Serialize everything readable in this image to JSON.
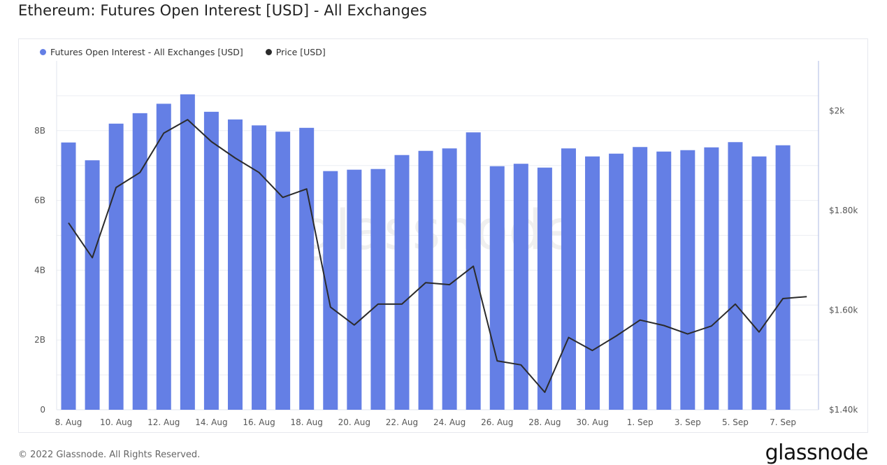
{
  "title": "Ethereum: Futures Open Interest [USD] - All Exchanges",
  "watermark": "glassnode",
  "footer": {
    "copyright": "© 2022 Glassnode. All Rights Reserved.",
    "logo": "glassnode"
  },
  "legend": [
    {
      "label": "Futures Open Interest - All Exchanges [USD]",
      "color": "#647fe5"
    },
    {
      "label": "Price [USD]",
      "color": "#2b2b2b"
    }
  ],
  "chart_data": {
    "type": "bar",
    "title": "Ethereum: Futures Open Interest [USD] - All Exchanges",
    "x_tick_labels": [
      "8. Aug",
      "10. Aug",
      "12. Aug",
      "14. Aug",
      "16. Aug",
      "18. Aug",
      "20. Aug",
      "22. Aug",
      "24. Aug",
      "26. Aug",
      "28. Aug",
      "30. Aug",
      "1. Sep",
      "3. Sep",
      "5. Sep",
      "7. Sep"
    ],
    "y_left_ticks": [
      {
        "value": 0,
        "label": "0"
      },
      {
        "value": 2000000000,
        "label": "2B"
      },
      {
        "value": 4000000000,
        "label": "4B"
      },
      {
        "value": 6000000000,
        "label": "6B"
      },
      {
        "value": 8000000000,
        "label": "8B"
      }
    ],
    "y_right_ticks": [
      {
        "value": 1400,
        "label": "$1.40k"
      },
      {
        "value": 1600,
        "label": "$1.60k"
      },
      {
        "value": 1800,
        "label": "$1.80k"
      },
      {
        "value": 2000,
        "label": "$2k"
      }
    ],
    "ylim_left": [
      0,
      10000000000
    ],
    "ylim_right": [
      1400,
      2100
    ],
    "grid": true,
    "legend_position": "top-left",
    "series": [
      {
        "name": "Futures Open Interest - All Exchanges [USD]",
        "type": "bar",
        "axis": "left",
        "color": "#647fe5",
        "x": [
          "2022-08-08",
          "2022-08-09",
          "2022-08-10",
          "2022-08-11",
          "2022-08-12",
          "2022-08-13",
          "2022-08-14",
          "2022-08-15",
          "2022-08-16",
          "2022-08-17",
          "2022-08-18",
          "2022-08-19",
          "2022-08-20",
          "2022-08-21",
          "2022-08-22",
          "2022-08-23",
          "2022-08-24",
          "2022-08-25",
          "2022-08-26",
          "2022-08-27",
          "2022-08-28",
          "2022-08-29",
          "2022-08-30",
          "2022-08-31",
          "2022-09-01",
          "2022-09-02",
          "2022-09-03",
          "2022-09-04",
          "2022-09-05",
          "2022-09-06",
          "2022-09-07"
        ],
        "values": [
          7660000000.0,
          7150000000.0,
          8200000000.0,
          8500000000.0,
          8770000000.0,
          9040000000.0,
          8540000000.0,
          8320000000.0,
          8150000000.0,
          7970000000.0,
          8080000000.0,
          6840000000.0,
          6880000000.0,
          6900000000.0,
          7300000000.0,
          7420000000.0,
          7490000000.0,
          7950000000.0,
          6980000000.0,
          7050000000.0,
          6940000000.0,
          7490000000.0,
          7260000000.0,
          7340000000.0,
          7530000000.0,
          7400000000.0,
          7440000000.0,
          7520000000.0,
          7670000000.0,
          7260000000.0,
          7580000000.0
        ]
      },
      {
        "name": "Price [USD]",
        "type": "line",
        "axis": "right",
        "color": "#2b2b2b",
        "x": [
          "2022-08-08",
          "2022-08-09",
          "2022-08-10",
          "2022-08-11",
          "2022-08-12",
          "2022-08-13",
          "2022-08-14",
          "2022-08-15",
          "2022-08-16",
          "2022-08-17",
          "2022-08-18",
          "2022-08-19",
          "2022-08-20",
          "2022-08-21",
          "2022-08-22",
          "2022-08-23",
          "2022-08-24",
          "2022-08-25",
          "2022-08-26",
          "2022-08-27",
          "2022-08-28",
          "2022-08-29",
          "2022-08-30",
          "2022-08-31",
          "2022-09-01",
          "2022-09-02",
          "2022-09-03",
          "2022-09-04",
          "2022-09-05",
          "2022-09-06",
          "2022-09-07",
          "2022-09-08"
        ],
        "values": [
          1775,
          1705,
          1846,
          1876,
          1955,
          1982,
          1938,
          1905,
          1876,
          1826,
          1843,
          1606,
          1570,
          1612,
          1612,
          1655,
          1651,
          1688,
          1498,
          1490,
          1435,
          1545,
          1519,
          1548,
          1580,
          1569,
          1552,
          1568,
          1612,
          1556,
          1623,
          1627
        ]
      }
    ]
  }
}
